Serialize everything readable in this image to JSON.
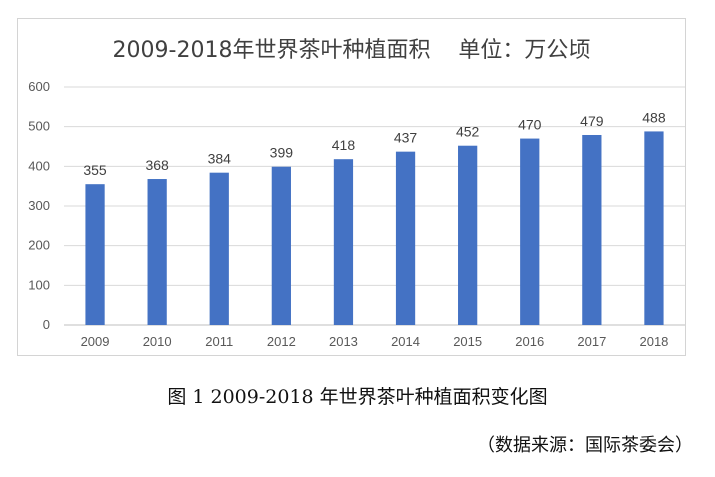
{
  "chart_data": {
    "type": "bar",
    "title": "2009-2018年世界茶叶种植面积    单位：万公顷",
    "categories": [
      "2009",
      "2010",
      "2011",
      "2012",
      "2013",
      "2014",
      "2015",
      "2016",
      "2017",
      "2018"
    ],
    "values": [
      355,
      368,
      384,
      399,
      418,
      437,
      452,
      470,
      479,
      488
    ],
    "ylim": [
      0,
      600
    ],
    "yticks": [
      0,
      100,
      200,
      300,
      400,
      500,
      600
    ],
    "grid": true,
    "legend": "none",
    "bar_color": "#4472c4"
  },
  "caption": "图 1 2009-2018 年世界茶叶种植面积变化图",
  "source": "（数据来源：国际茶委会）"
}
